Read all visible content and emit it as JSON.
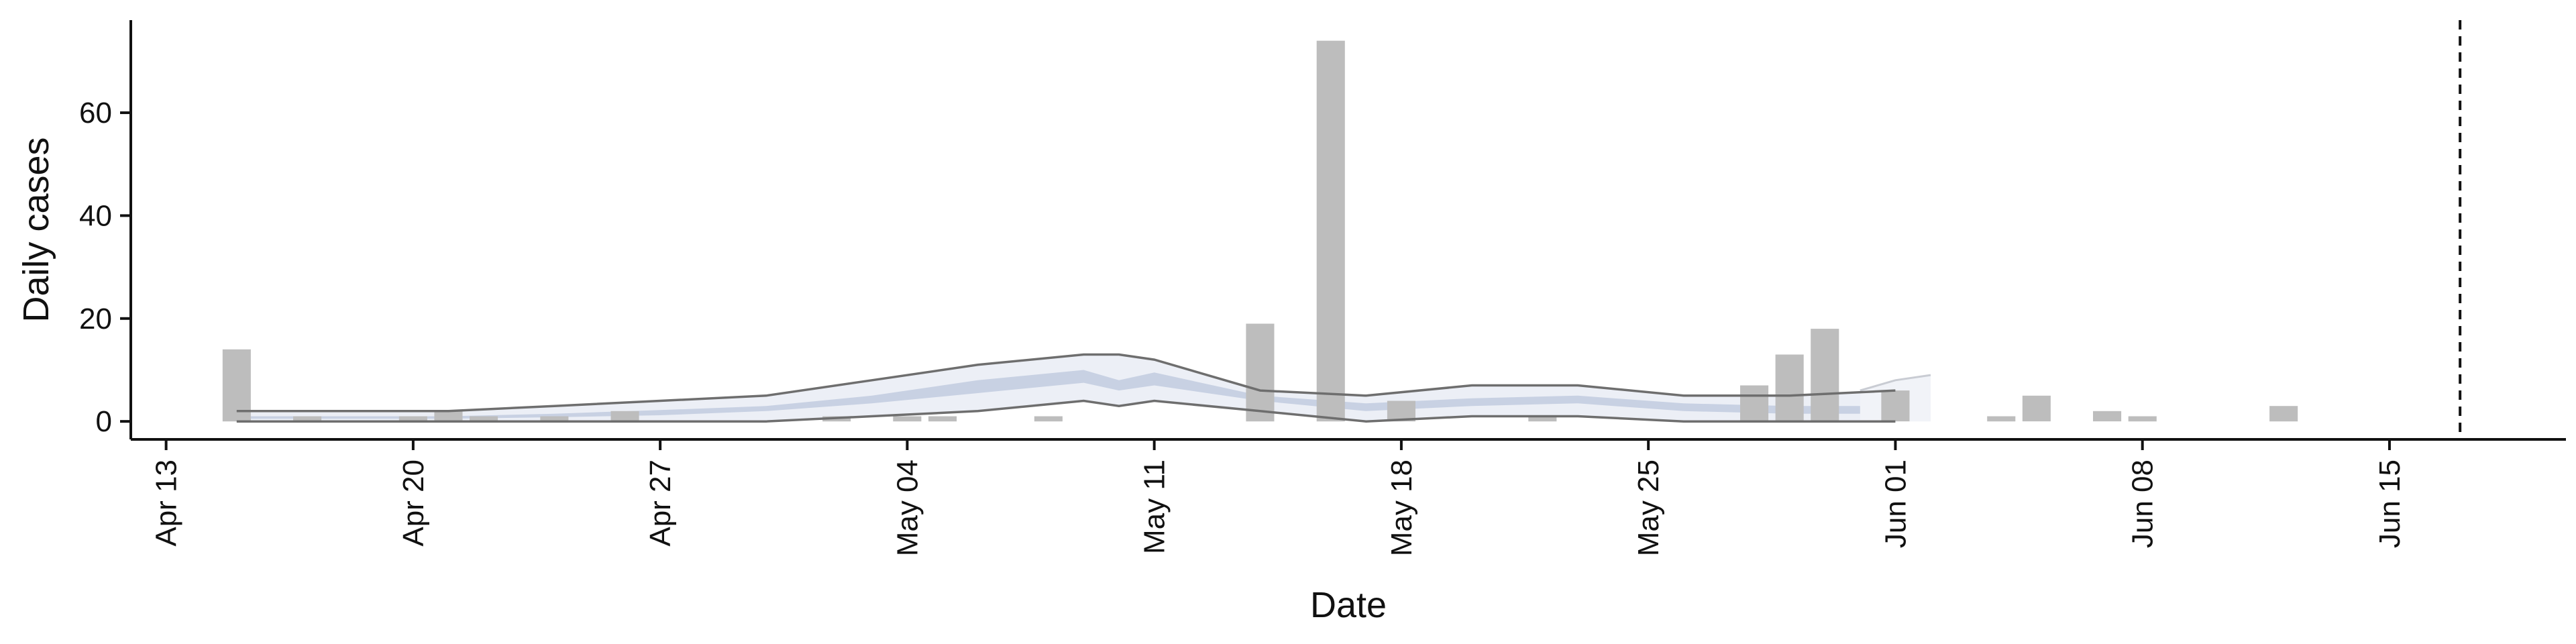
{
  "chart_data": {
    "type": "bar",
    "xlabel": "Date",
    "ylabel": "Daily cases",
    "ylim": [
      -3.5,
      78
    ],
    "xlim": [
      "2020-04-12",
      "2020-06-20"
    ],
    "x_ticks": [
      {
        "date": "2020-04-13",
        "label": "Apr 13"
      },
      {
        "date": "2020-04-20",
        "label": "Apr 20"
      },
      {
        "date": "2020-04-27",
        "label": "Apr 27"
      },
      {
        "date": "2020-05-04",
        "label": "May 04"
      },
      {
        "date": "2020-05-11",
        "label": "May 11"
      },
      {
        "date": "2020-05-18",
        "label": "May 18"
      },
      {
        "date": "2020-05-25",
        "label": "May 25"
      },
      {
        "date": "2020-06-01",
        "label": "Jun 01"
      },
      {
        "date": "2020-06-08",
        "label": "Jun 08"
      },
      {
        "date": "2020-06-15",
        "label": "Jun 15"
      }
    ],
    "y_ticks": [
      {
        "value": 0,
        "label": "0"
      },
      {
        "value": 20,
        "label": "20"
      },
      {
        "value": 40,
        "label": "40"
      },
      {
        "value": 60,
        "label": "60"
      }
    ],
    "bars": [
      {
        "date": "2020-04-15",
        "value": 14
      },
      {
        "date": "2020-04-17",
        "value": 1
      },
      {
        "date": "2020-04-20",
        "value": 1
      },
      {
        "date": "2020-04-21",
        "value": 2
      },
      {
        "date": "2020-04-22",
        "value": 1
      },
      {
        "date": "2020-04-24",
        "value": 1
      },
      {
        "date": "2020-04-26",
        "value": 2
      },
      {
        "date": "2020-05-02",
        "value": 1
      },
      {
        "date": "2020-05-04",
        "value": 1
      },
      {
        "date": "2020-05-05",
        "value": 1
      },
      {
        "date": "2020-05-08",
        "value": 1
      },
      {
        "date": "2020-05-14",
        "value": 19
      },
      {
        "date": "2020-05-16",
        "value": 74
      },
      {
        "date": "2020-05-18",
        "value": 4
      },
      {
        "date": "2020-05-22",
        "value": 1
      },
      {
        "date": "2020-05-28",
        "value": 7
      },
      {
        "date": "2020-05-29",
        "value": 13
      },
      {
        "date": "2020-05-30",
        "value": 18
      },
      {
        "date": "2020-06-01",
        "value": 6
      },
      {
        "date": "2020-06-04",
        "value": 1
      },
      {
        "date": "2020-06-05",
        "value": 5
      },
      {
        "date": "2020-06-07",
        "value": 2
      },
      {
        "date": "2020-06-08",
        "value": 1
      },
      {
        "date": "2020-06-12",
        "value": 3
      }
    ],
    "estimate_band": {
      "dates": [
        "2020-04-15",
        "2020-04-18",
        "2020-04-21",
        "2020-04-24",
        "2020-04-27",
        "2020-04-30",
        "2020-05-03",
        "2020-05-06",
        "2020-05-09",
        "2020-05-10",
        "2020-05-11",
        "2020-05-14",
        "2020-05-17",
        "2020-05-20",
        "2020-05-23",
        "2020-05-26",
        "2020-05-29",
        "2020-06-01"
      ],
      "outer_lower": [
        0,
        0,
        0,
        0,
        0,
        0,
        1,
        2,
        4,
        3,
        4,
        2,
        0,
        1,
        1,
        0,
        0,
        0
      ],
      "outer_upper": [
        2,
        2,
        2,
        3,
        4,
        5,
        8,
        11,
        13,
        13,
        12,
        6,
        5,
        7,
        7,
        5,
        5,
        6
      ],
      "inner_lower": [
        0.5,
        0.5,
        0.5,
        0.8,
        1.2,
        2,
        3.5,
        5.5,
        7.5,
        6,
        7,
        4,
        2,
        3,
        3.5,
        2,
        1.5,
        1.5
      ],
      "inner_upper": [
        1,
        1,
        1,
        1.5,
        2.2,
        3,
        5,
        8,
        10,
        8,
        9.5,
        5,
        3.5,
        4.5,
        5,
        3.5,
        3,
        3
      ]
    },
    "forecast_band": {
      "dates": [
        "2020-05-31",
        "2020-06-01",
        "2020-06-02"
      ],
      "lower": [
        0,
        0,
        0
      ],
      "upper": [
        6,
        8,
        9
      ]
    },
    "vline_date": "2020-06-17",
    "colors": {
      "bars": "#bdbdbd",
      "outer_band": "#eceff6",
      "inner_band": "#c8d1e3",
      "band_edge": "#6e6e6e",
      "forecast_band": "#f1f3f8",
      "forecast_edge": "#c9ccd3",
      "axis": "#111111"
    }
  }
}
